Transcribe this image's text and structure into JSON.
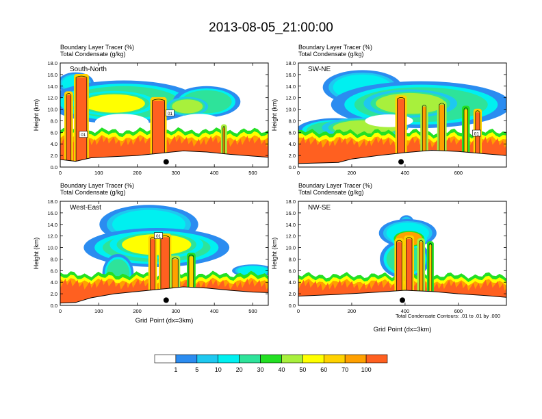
{
  "title": "2013-08-05_21:00:00",
  "field_label": "Boundary Layer Tracer",
  "field_unit": "(%)",
  "contour_label": "Total Condensate",
  "contour_unit": "(g/kg)",
  "contour_note": "Total Condensate Contours: .01 to .01 by .000",
  "colors": [
    "#ffffff",
    "#2b8cf0",
    "#1ec8f0",
    "#00f0f0",
    "#2ee39a",
    "#23e023",
    "#a8f03c",
    "#ffff00",
    "#ffd200",
    "#ffa000",
    "#ff6020",
    "#ff1e1e"
  ],
  "colorbar_ticks": [
    "1",
    "5",
    "10",
    "20",
    "30",
    "40",
    "50",
    "60",
    "70",
    "100"
  ],
  "chart_data": [
    {
      "type": "heatmap",
      "panel": "South-North",
      "ylabel": "Height (km)",
      "xlabel": "",
      "xlim": [
        0,
        540
      ],
      "ylim": [
        0,
        18
      ],
      "xticks": [
        "0",
        "100",
        "200",
        "300",
        "400",
        "500"
      ],
      "yticks": [
        "0.0",
        "2.0",
        "4.0",
        "6.0",
        "8.0",
        "10.0",
        "12.0",
        "14.0",
        "16.0",
        "18.0"
      ],
      "marker_x": 275,
      "contour_labels": [
        {
          "text": "01",
          "x": 60,
          "y": 5.6
        },
        {
          "text": "01",
          "x": 285,
          "y": 9.3
        }
      ],
      "terrain": [
        [
          0,
          1.3
        ],
        [
          40,
          1.0
        ],
        [
          80,
          1.6
        ],
        [
          140,
          1.8
        ],
        [
          200,
          2.0
        ],
        [
          260,
          2.4
        ],
        [
          320,
          2.8
        ],
        [
          380,
          2.6
        ],
        [
          440,
          2.2
        ],
        [
          500,
          1.9
        ],
        [
          540,
          1.7
        ]
      ],
      "plumes": [
        {
          "x": 22,
          "w": 12,
          "top": 12.5,
          "v": 100
        },
        {
          "x": 55,
          "w": 28,
          "top": 15.5,
          "v": 100
        },
        {
          "x": 255,
          "w": 32,
          "top": 11.5,
          "v": 100
        },
        {
          "x": 425,
          "w": 5,
          "top": 6.8,
          "v": 70
        }
      ],
      "blobs": [
        {
          "cx": 165,
          "cy": 11.2,
          "rx": 145,
          "ry": 2.8,
          "v": 20
        },
        {
          "cx": 140,
          "cy": 11.0,
          "rx": 80,
          "ry": 1.6,
          "v": 50
        },
        {
          "cx": 380,
          "cy": 11.3,
          "rx": 65,
          "ry": 2.0,
          "v": 20
        },
        {
          "cx": 330,
          "cy": 10.5,
          "rx": 40,
          "ry": 1.2,
          "v": 40
        },
        {
          "cx": 40,
          "cy": 14.5,
          "rx": 35,
          "ry": 1.4,
          "v": 10
        }
      ],
      "holes": [
        {
          "cx": 160,
          "cy": 7.7,
          "rx": 70,
          "ry": 1.5
        },
        {
          "cx": 360,
          "cy": 7.7,
          "rx": 60,
          "ry": 1.5
        }
      ],
      "lowfill": [
        5.7,
        5.0
      ]
    },
    {
      "type": "heatmap",
      "panel": "SW-NE",
      "ylabel": "Height (km)",
      "xlabel": "",
      "xlim": [
        0,
        780
      ],
      "ylim": [
        0,
        18
      ],
      "xticks": [
        "0",
        "200",
        "400",
        "600"
      ],
      "yticks": [
        "0.0",
        "2.0",
        "4.0",
        "6.0",
        "8.0",
        "10.0",
        "12.0",
        "14.0",
        "16.0",
        "18.0"
      ],
      "marker_x": 385,
      "contour_labels": [
        {
          "text": "01",
          "x": 668,
          "y": 5.8
        }
      ],
      "terrain": [
        [
          0,
          0.6
        ],
        [
          150,
          0.8
        ],
        [
          200,
          1.4
        ],
        [
          300,
          2.0
        ],
        [
          400,
          2.5
        ],
        [
          500,
          2.9
        ],
        [
          600,
          2.7
        ],
        [
          700,
          2.3
        ],
        [
          780,
          2.0
        ]
      ],
      "plumes": [
        {
          "x": 385,
          "w": 28,
          "top": 11.8,
          "v": 100
        },
        {
          "x": 472,
          "w": 14,
          "top": 10.5,
          "v": 70
        },
        {
          "x": 538,
          "w": 20,
          "top": 10.8,
          "v": 70
        },
        {
          "x": 628,
          "w": 14,
          "top": 10.0,
          "v": 60
        },
        {
          "x": 672,
          "w": 16,
          "top": 9.5,
          "v": 100
        }
      ],
      "blobs": [
        {
          "cx": 240,
          "cy": 13.8,
          "rx": 110,
          "ry": 2.2,
          "v": 10
        },
        {
          "cx": 460,
          "cy": 10.8,
          "rx": 250,
          "ry": 3.0,
          "v": 20
        },
        {
          "cx": 420,
          "cy": 11.0,
          "rx": 130,
          "ry": 1.8,
          "v": 40
        },
        {
          "cx": 140,
          "cy": 6.3,
          "rx": 110,
          "ry": 1.6,
          "v": 20
        },
        {
          "cx": 250,
          "cy": 6.8,
          "rx": 120,
          "ry": 1.3,
          "v": 40
        },
        {
          "cx": 255,
          "cy": 2.8,
          "rx": 40,
          "ry": 2.0,
          "v": 20
        }
      ],
      "holes": [
        {
          "cx": 340,
          "cy": 8.0,
          "rx": 90,
          "ry": 1.1
        }
      ],
      "lowfill": [
        5.5,
        4.8
      ]
    },
    {
      "type": "heatmap",
      "panel": "West-East",
      "ylabel": "Height (km)",
      "xlabel": "Grid Point (dx=3km)",
      "xlim": [
        0,
        540
      ],
      "ylim": [
        0,
        18
      ],
      "xticks": [
        "0",
        "100",
        "200",
        "300",
        "400",
        "500"
      ],
      "yticks": [
        "0.0",
        "2.0",
        "4.0",
        "6.0",
        "8.0",
        "10.0",
        "12.0",
        "14.0",
        "16.0",
        "18.0"
      ],
      "marker_x": 275,
      "contour_labels": [
        {
          "text": "01",
          "x": 255,
          "y": 12.0
        }
      ],
      "terrain": [
        [
          0,
          0.4
        ],
        [
          40,
          0.5
        ],
        [
          80,
          1.3
        ],
        [
          140,
          2.0
        ],
        [
          200,
          2.4
        ],
        [
          260,
          2.8
        ],
        [
          320,
          3.2
        ],
        [
          380,
          3.0
        ],
        [
          440,
          2.6
        ],
        [
          500,
          2.3
        ],
        [
          540,
          2.2
        ]
      ],
      "plumes": [
        {
          "x": 240,
          "w": 12,
          "top": 11.5,
          "v": 100
        },
        {
          "x": 272,
          "w": 22,
          "top": 11.8,
          "v": 100
        },
        {
          "x": 298,
          "w": 16,
          "top": 8.0,
          "v": 70
        },
        {
          "x": 340,
          "w": 12,
          "top": 8.5,
          "v": 60
        }
      ],
      "blobs": [
        {
          "cx": 230,
          "cy": 14.0,
          "rx": 95,
          "ry": 2.5,
          "v": 10
        },
        {
          "cx": 250,
          "cy": 10.0,
          "rx": 140,
          "ry": 2.5,
          "v": 20
        },
        {
          "cx": 250,
          "cy": 10.5,
          "rx": 90,
          "ry": 1.8,
          "v": 50
        },
        {
          "cx": 150,
          "cy": 5.5,
          "rx": 30,
          "ry": 2.5,
          "v": 20
        },
        {
          "cx": 500,
          "cy": 6.0,
          "rx": 40,
          "ry": 0.8,
          "v": 10
        }
      ],
      "holes": [],
      "lowfill": [
        4.8,
        4.2
      ]
    },
    {
      "type": "heatmap",
      "panel": "NW-SE",
      "ylabel": "Height (km)",
      "xlabel": "Grid Point (dx=3km)",
      "xlim": [
        0,
        780
      ],
      "ylim": [
        0,
        18
      ],
      "xticks": [
        "0",
        "200",
        "400",
        "600"
      ],
      "yticks": [
        "0.0",
        "2.0",
        "4.0",
        "6.0",
        "8.0",
        "10.0",
        "12.0",
        "14.0",
        "16.0",
        "18.0"
      ],
      "marker_x": 390,
      "contour_labels": [],
      "terrain": [
        [
          0,
          1.6
        ],
        [
          150,
          1.9
        ],
        [
          300,
          2.3
        ],
        [
          400,
          2.6
        ],
        [
          500,
          2.4
        ],
        [
          600,
          2.0
        ],
        [
          700,
          1.7
        ],
        [
          780,
          1.4
        ]
      ],
      "plumes": [
        {
          "x": 378,
          "w": 20,
          "top": 11.0,
          "v": 100
        },
        {
          "x": 415,
          "w": 22,
          "top": 11.5,
          "v": 100
        },
        {
          "x": 460,
          "w": 14,
          "top": 11.0,
          "v": 70
        },
        {
          "x": 495,
          "w": 10,
          "top": 10.5,
          "v": 60
        }
      ],
      "blobs": [
        {
          "cx": 410,
          "cy": 12.5,
          "rx": 80,
          "ry": 1.8,
          "v": 10
        },
        {
          "cx": 415,
          "cy": 11.5,
          "rx": 50,
          "ry": 1.2,
          "v": 70
        },
        {
          "cx": 405,
          "cy": 14.5,
          "rx": 20,
          "ry": 0.8,
          "v": 5
        },
        {
          "cx": 400,
          "cy": 8.0,
          "rx": 70,
          "ry": 2.5,
          "v": 20
        }
      ],
      "holes": [],
      "lowfill": [
        4.6,
        4.0
      ]
    }
  ]
}
